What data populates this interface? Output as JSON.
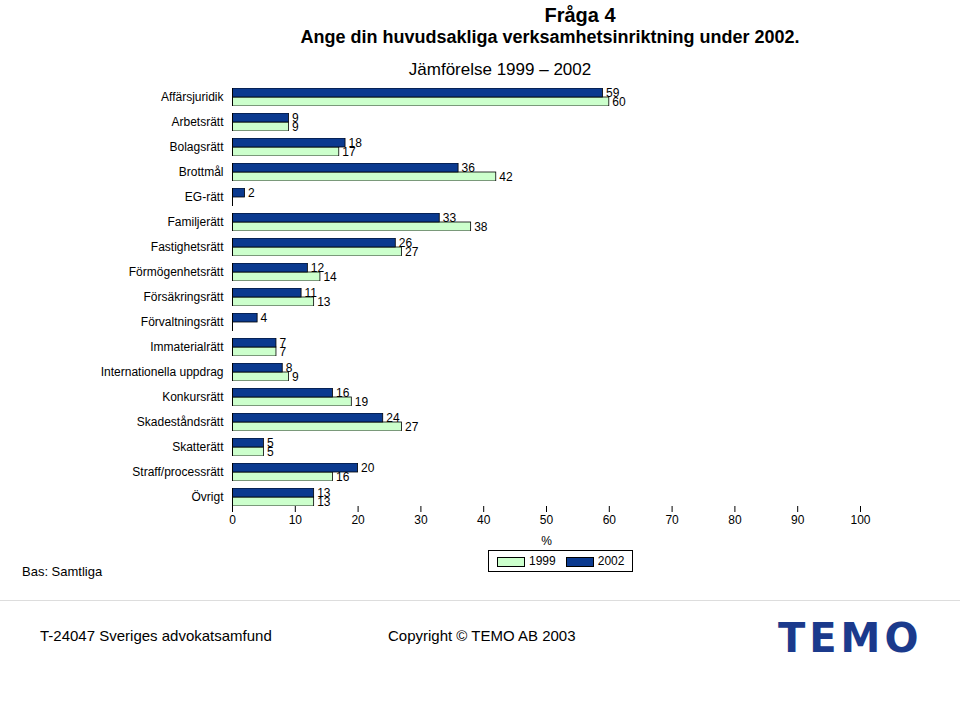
{
  "chart_data": {
    "type": "bar",
    "orientation": "horizontal",
    "title": "Fråga 4",
    "subtitles": [
      "Ange din huvudsakliga verksamhetsinriktning under 2002.",
      "Jämförelse 1999 – 2002"
    ],
    "x_label": "%",
    "categories": [
      "Affärsjuridik",
      "Arbetsrätt",
      "Bolagsrätt",
      "Brottmål",
      "EG-rätt",
      "Familjerätt",
      "Fastighetsrätt",
      "Förmögenhetsrätt",
      "Försäkringsrätt",
      "Förvaltningsrätt",
      "Immaterialrätt",
      "Internationella uppdrag",
      "Konkursrätt",
      "Skadeståndsrätt",
      "Skatterätt",
      "Straff/processrätt",
      "Övrigt"
    ],
    "series": [
      {
        "name": "1999",
        "color": "#ccffcc",
        "values": [
          60,
          9,
          17,
          42,
          null,
          38,
          27,
          14,
          13,
          null,
          7,
          9,
          19,
          27,
          5,
          16,
          13
        ]
      },
      {
        "name": "2002",
        "color": "#0b3a8f",
        "values": [
          59,
          9,
          18,
          36,
          2,
          33,
          26,
          12,
          11,
          4,
          7,
          8,
          16,
          24,
          5,
          20,
          13
        ]
      }
    ],
    "xlim": [
      0,
      100
    ],
    "xticks": [
      0,
      10,
      20,
      30,
      40,
      50,
      60,
      70,
      80,
      90,
      100
    ],
    "grid": false,
    "data_labels": true,
    "base_note": "Bas: Samtliga",
    "footer": [
      "T-24047 Sveriges advokatsamfund",
      "Copyright © TEMO AB 2003",
      "TEMO"
    ]
  }
}
